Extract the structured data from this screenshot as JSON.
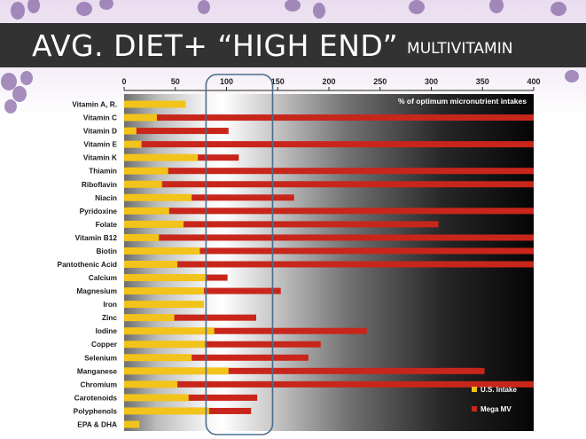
{
  "slide": {
    "title_main": "AVG. DIET+ “HIGH END”",
    "title_sub": "MULTIVITAMIN"
  },
  "colors": {
    "us_intake": "#f2c31a",
    "mega_mv": "#c8261b",
    "highlight_box": "#4c6c8a"
  },
  "chart_data": {
    "type": "bar",
    "orientation": "horizontal",
    "title": "% of optimum micronutrient intakes",
    "xlim": [
      0,
      400
    ],
    "xticks": [
      0,
      50,
      100,
      150,
      200,
      250,
      300,
      350,
      400
    ],
    "highlight_range": [
      80,
      145
    ],
    "legend_position": "bottom-right",
    "categories": [
      "Vitamin A, R.",
      "Vitamin C",
      "Vitamin D",
      "Vitamin E",
      "Vitamin K",
      "Thiamin",
      "Riboflavin",
      "Niacin",
      "Pyridoxine",
      "Folate",
      "Vitamin B12",
      "Biotin",
      "Pantothenic Acid",
      "Calcium",
      "Magnesium",
      "Iron",
      "Zinc",
      "Iodine",
      "Copper",
      "Selenium",
      "Manganese",
      "Chromium",
      "Carotenoids",
      "Polyphenols",
      "EPA & DHA"
    ],
    "series": [
      {
        "name": "U.S. Intake",
        "values": [
          60,
          32,
          12,
          17,
          72,
          43,
          37,
          66,
          44,
          58,
          34,
          74,
          52,
          80,
          78,
          78,
          49,
          88,
          79,
          66,
          102,
          52,
          63,
          83,
          15
        ]
      },
      {
        "name": "Mega MV",
        "values": [
          0,
          400,
          102,
          400,
          112,
          400,
          400,
          166,
          400,
          307,
          400,
          400,
          400,
          101,
          153,
          0,
          129,
          237,
          192,
          180,
          352,
          400,
          130,
          124,
          0
        ]
      }
    ]
  }
}
